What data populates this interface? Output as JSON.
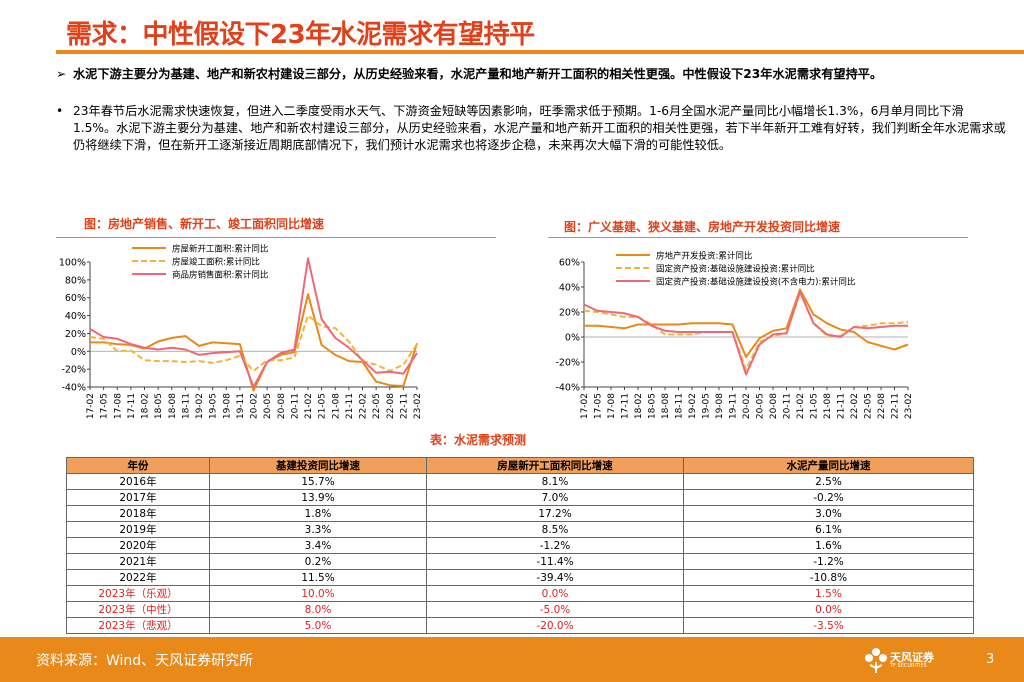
{
  "header": {
    "title": "需求：中性假设下23年水泥需求有望持平"
  },
  "bullets": [
    {
      "mark": "➢",
      "text": "水泥下游主要分为基建、地产和新农村建设三部分，从历史经验来看，水泥产量和地产新开工面积的相关性更强。中性假设下23年水泥需求有望持平。"
    },
    {
      "mark": "•",
      "text": "23年春节后水泥需求快速恢复，但进入二季度受雨水天气、下游资金短缺等因素影响，旺季需求低于预期。1-6月全国水泥产量同比小幅增长1.3%，6月单月同比下滑1.5%。水泥下游主要分为基建、地产和新农村建设三部分，从历史经验来看，水泥产量和地产新开工面积的相关性更强，若下半年新开工难有好转，我们判断全年水泥需求或仍将继续下滑，但在新开工逐渐接近周期底部情况下，我们预计水泥需求也将逐步企稳，未来再次大幅下滑的可能性较低。"
    }
  ],
  "colors": {
    "accent": "#e8891a",
    "title_red": "#e0401a",
    "header_bg": "#f0a05a",
    "forecast_red": "#e02020"
  },
  "chart_data": [
    {
      "type": "line",
      "title": "图：房地产销售、新开工、竣工面积同比增速",
      "x": [
        "17-02",
        "17-05",
        "17-08",
        "17-11",
        "18-02",
        "18-05",
        "18-08",
        "18-11",
        "19-02",
        "19-05",
        "19-08",
        "19-11",
        "20-02",
        "20-05",
        "20-08",
        "20-11",
        "21-02",
        "21-05",
        "21-08",
        "21-11",
        "22-02",
        "22-05",
        "22-08",
        "22-11",
        "23-02"
      ],
      "yticks": [
        "100%",
        "80%",
        "60%",
        "40%",
        "20%",
        "0%",
        "-20%",
        "-40%"
      ],
      "ylim": [
        -40,
        100
      ],
      "legend_position": "top-center",
      "series": [
        {
          "name": "房屋新开工面积:累计同比",
          "color": "#e8891a",
          "dash": "solid",
          "values": [
            10,
            10,
            8,
            7,
            3,
            11,
            15,
            17,
            6,
            10,
            9,
            8,
            -44,
            -12,
            -4,
            -1,
            64,
            7,
            -4,
            -11,
            -12,
            -34,
            -38,
            -39,
            9
          ]
        },
        {
          "name": "房屋竣工面积:累计同比",
          "color": "#f2b53c",
          "dash": "dashed",
          "values": [
            16,
            14,
            0,
            1,
            -10,
            -11,
            -11,
            -12,
            -11,
            -13,
            -10,
            -5,
            -22,
            -10,
            -10,
            -7,
            40,
            28,
            26,
            11,
            -11,
            -15,
            -22,
            -15,
            8
          ]
        },
        {
          "name": "商品房销售面积:累计同比",
          "color": "#f06878",
          "dash": "solid",
          "values": [
            25,
            16,
            14,
            8,
            4,
            2,
            4,
            2,
            -4,
            -2,
            -1,
            0,
            -40,
            -12,
            -2,
            2,
            104,
            36,
            15,
            4,
            -10,
            -24,
            -23,
            -25,
            -2
          ]
        }
      ]
    },
    {
      "type": "line",
      "title": "图：广义基建、狭义基建、房地产开发投资同比增速",
      "x": [
        "17-02",
        "17-05",
        "17-08",
        "17-11",
        "18-02",
        "18-05",
        "18-08",
        "18-11",
        "19-02",
        "19-05",
        "19-08",
        "19-11",
        "20-02",
        "20-05",
        "20-08",
        "20-11",
        "21-02",
        "21-05",
        "21-08",
        "21-11",
        "22-02",
        "22-05",
        "22-08",
        "22-11",
        "23-02"
      ],
      "yticks": [
        "60%",
        "40%",
        "20%",
        "0%",
        "-20%",
        "-40%"
      ],
      "ylim": [
        -40,
        60
      ],
      "legend_position": "top-center",
      "series": [
        {
          "name": "房地产开发投资:累计同比",
          "color": "#e8891a",
          "dash": "solid",
          "values": [
            9,
            9,
            8,
            7,
            10,
            10,
            10,
            10,
            11,
            11,
            11,
            10,
            -16,
            -1,
            5,
            7,
            38,
            18,
            11,
            6,
            4,
            -4,
            -7,
            -10,
            -6
          ]
        },
        {
          "name": "固定资产投资:基础设施建设投资:累计同比",
          "color": "#f2b53c",
          "dash": "dashed",
          "values": [
            21,
            20,
            18,
            16,
            16,
            10,
            2,
            2,
            2,
            4,
            4,
            4,
            -26,
            -4,
            1,
            3,
            36,
            11,
            1,
            1,
            8,
            9,
            11,
            11,
            12
          ]
        },
        {
          "name": "固定资产投资:基础设施建设投资(不含电力):累计同比",
          "color": "#f06878",
          "dash": "solid",
          "values": [
            26,
            21,
            20,
            19,
            16,
            9,
            5,
            4,
            4,
            4,
            4,
            4,
            -30,
            -6,
            2,
            3,
            36,
            11,
            2,
            0,
            8,
            7,
            8,
            9,
            9
          ]
        }
      ]
    }
  ],
  "table": {
    "title": "表：水泥需求预测",
    "headers": [
      "年份",
      "基建投资同比增速",
      "房屋新开工面积同比增速",
      "水泥产量同比增速"
    ],
    "rows": [
      {
        "cells": [
          "2016年",
          "15.7%",
          "8.1%",
          "2.5%"
        ],
        "forecast": false
      },
      {
        "cells": [
          "2017年",
          "13.9%",
          "7.0%",
          "-0.2%"
        ],
        "forecast": false
      },
      {
        "cells": [
          "2018年",
          "1.8%",
          "17.2%",
          "3.0%"
        ],
        "forecast": false
      },
      {
        "cells": [
          "2019年",
          "3.3%",
          "8.5%",
          "6.1%"
        ],
        "forecast": false
      },
      {
        "cells": [
          "2020年",
          "3.4%",
          "-1.2%",
          "1.6%"
        ],
        "forecast": false
      },
      {
        "cells": [
          "2021年",
          "0.2%",
          "-11.4%",
          "-1.2%"
        ],
        "forecast": false
      },
      {
        "cells": [
          "2022年",
          "11.5%",
          "-39.4%",
          "-10.8%"
        ],
        "forecast": false
      },
      {
        "cells": [
          "2023年（乐观）",
          "10.0%",
          "0.0%",
          "1.5%"
        ],
        "forecast": true
      },
      {
        "cells": [
          "2023年（中性）",
          "8.0%",
          "-5.0%",
          "0.0%"
        ],
        "forecast": true
      },
      {
        "cells": [
          "2023年（悲观）",
          "5.0%",
          "-20.0%",
          "-3.5%"
        ],
        "forecast": true
      }
    ]
  },
  "footer": {
    "source": "资料来源：Wind、天风证券研究所",
    "logo_cn": "天风证券",
    "logo_en": "TF SECURITIES",
    "logo_icon": "flower-logo-icon",
    "page_number": "3"
  }
}
